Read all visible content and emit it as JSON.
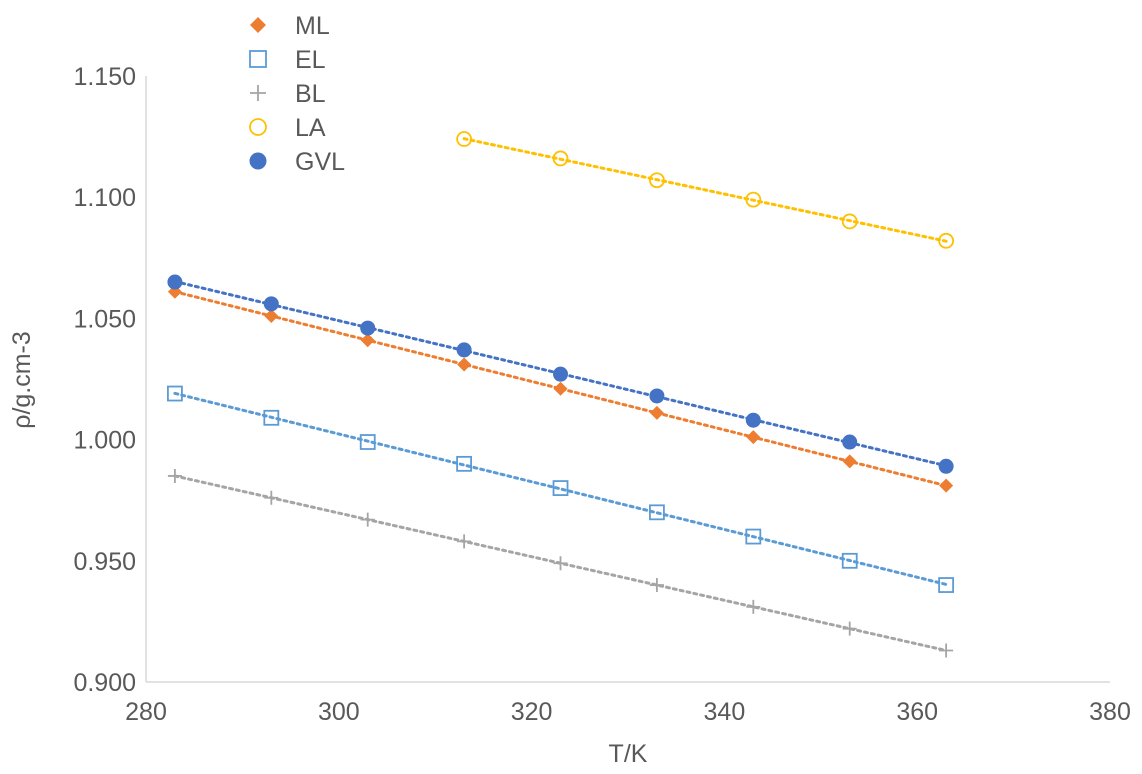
{
  "chart_data": {
    "type": "scatter",
    "title": "",
    "xlabel": "T/K",
    "ylabel": "ρ/g.cm-3",
    "xlim": [
      280,
      380
    ],
    "ylim": [
      0.9,
      1.15
    ],
    "x_ticks": [
      "280",
      "300",
      "320",
      "340",
      "360",
      "380"
    ],
    "y_ticks": [
      "0.900",
      "0.950",
      "1.000",
      "1.050",
      "1.100",
      "1.150"
    ],
    "grid": false,
    "legend_position": "top-left",
    "trendlines": "linear, dotted",
    "series": [
      {
        "name": "ML",
        "marker": "diamond-filled",
        "color": "#ED7D31",
        "x": [
          283,
          293,
          303,
          313,
          323,
          333,
          343,
          353,
          363
        ],
        "y": [
          1.061,
          1.051,
          1.041,
          1.031,
          1.021,
          1.011,
          1.001,
          0.991,
          0.981
        ]
      },
      {
        "name": "EL",
        "marker": "square-open",
        "color": "#5B9BD5",
        "x": [
          283,
          293,
          303,
          313,
          323,
          333,
          343,
          353,
          363
        ],
        "y": [
          1.019,
          1.009,
          0.999,
          0.99,
          0.98,
          0.97,
          0.96,
          0.95,
          0.94
        ]
      },
      {
        "name": "BL",
        "marker": "plus",
        "color": "#A5A5A5",
        "x": [
          283,
          293,
          303,
          313,
          323,
          333,
          343,
          353,
          363
        ],
        "y": [
          0.985,
          0.976,
          0.967,
          0.958,
          0.949,
          0.94,
          0.931,
          0.922,
          0.913
        ]
      },
      {
        "name": "LA",
        "marker": "circle-open",
        "color": "#FFC000",
        "x": [
          313,
          323,
          333,
          343,
          353,
          363
        ],
        "y": [
          1.124,
          1.116,
          1.107,
          1.099,
          1.09,
          1.082
        ]
      },
      {
        "name": "GVL",
        "marker": "circle-filled",
        "color": "#4472C4",
        "x": [
          283,
          293,
          303,
          313,
          323,
          333,
          343,
          353,
          363
        ],
        "y": [
          1.065,
          1.056,
          1.046,
          1.037,
          1.027,
          1.018,
          1.008,
          0.999,
          0.989
        ]
      }
    ]
  }
}
